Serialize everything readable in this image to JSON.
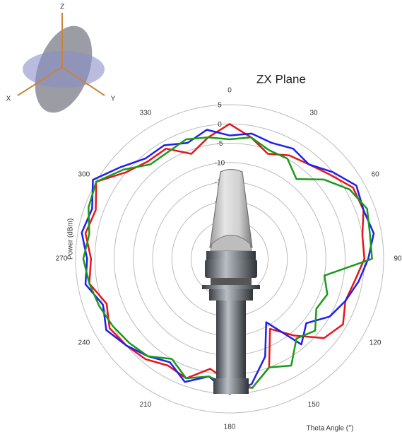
{
  "chart_data": {
    "type": "polar_line",
    "title": "ZX Plane",
    "radial_axis_label": "Power (dBm)",
    "angle_axis_label": "Theta  Angle (°)",
    "annotations": [
      "Z",
      "X",
      "Y"
    ],
    "theta": [
      0,
      10,
      20,
      30,
      40,
      50,
      60,
      70,
      80,
      90,
      100,
      110,
      120,
      130,
      140,
      150,
      160,
      170,
      180,
      190,
      200,
      210,
      220,
      230,
      240,
      250,
      260,
      270,
      280,
      290,
      300,
      310,
      320,
      330,
      340,
      350
    ],
    "series": [
      {
        "color": "#e8151b",
        "values": [
          0,
          -3,
          -6,
          -4,
          -3,
          -1,
          2,
          2,
          0,
          0,
          -2,
          -3,
          -1,
          -3,
          -9,
          -14,
          -5,
          -1,
          -3,
          -6,
          -2,
          -3,
          -1,
          0,
          1,
          -1,
          2,
          1,
          3,
          2,
          5,
          0,
          -2,
          -2,
          -6,
          -3
        ]
      },
      {
        "color": "#1f1ff0",
        "values": [
          -3,
          -2,
          -3,
          -2,
          -3,
          0,
          3,
          2,
          3,
          1,
          -1,
          -3,
          -5,
          -9,
          -6,
          -16,
          -8,
          -2,
          0,
          -4,
          -1,
          -4,
          -2,
          0,
          2,
          0,
          3,
          2,
          4,
          3,
          6,
          2,
          -1,
          -1,
          -3,
          -1
        ]
      },
      {
        "color": "#1a9a1a",
        "values": [
          -4,
          -3,
          -5,
          -5,
          -8,
          -3,
          1,
          3,
          2,
          2,
          -10,
          -8,
          -9,
          -6,
          -8,
          -3,
          -5,
          -1,
          -2,
          -4,
          -2,
          -5,
          -2,
          -1,
          0,
          1,
          2,
          3,
          2,
          4,
          5,
          1,
          -3,
          -3,
          -2,
          -3
        ]
      }
    ],
    "rlim": [
      -35,
      5
    ],
    "rticks": [
      -30,
      -25,
      -20,
      -15,
      -10,
      -5,
      0,
      5
    ],
    "thetaticks": [
      0,
      30,
      60,
      90,
      120,
      150,
      180,
      210,
      240,
      270,
      300,
      330
    ],
    "grid": true
  }
}
